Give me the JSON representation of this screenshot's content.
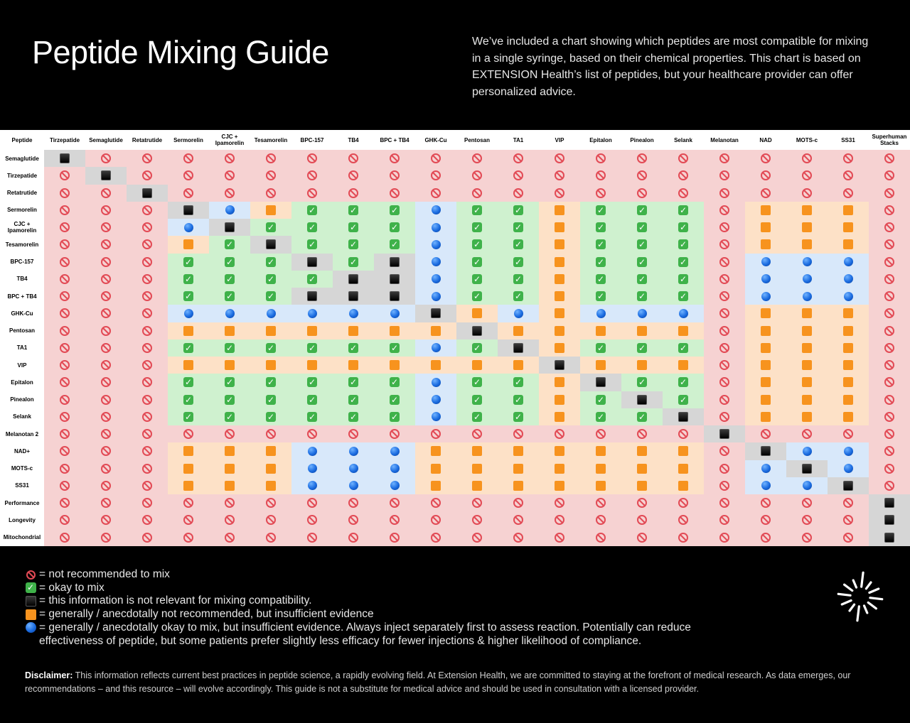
{
  "title": "Peptide Mixing Guide",
  "intro": "We’ve included a chart showing which peptides are most compatible for mixing in a single syringe, based on their chemical properties. This chart is based on EXTENSION Health’s list of peptides, but your healthcare provider can offer personalized advice.",
  "colors": {
    "not_recommended": "#e24a55",
    "okay": "#3fb24a",
    "insufficient_not_recommended": "#f7931e",
    "insufficient_okay": "#1a6be0",
    "not_relevant": "#000000"
  },
  "chart_data": {
    "type": "table",
    "corner_label": "Peptide",
    "columns": [
      "Tirzepatide",
      "Semaglutide",
      "Retatrutide",
      "Sermorelin",
      "CJC + Ipamorelin",
      "Tesamorelin",
      "BPC-157",
      "TB4",
      "BPC + TB4",
      "GHK-Cu",
      "Pentosan",
      "TA1",
      "VIP",
      "Epitalon",
      "Pinealon",
      "Selank",
      "Melanotan",
      "NAD",
      "MOTS-c",
      "SS31",
      "Superhuman Stacks"
    ],
    "rows": [
      {
        "label": "Semaglutide",
        "values": "xnnnnnnnnnnnnnnnnnnnn"
      },
      {
        "label": "Tirzepatide",
        "values": "nxnnnnnnnnnnnnnnnnnnn"
      },
      {
        "label": "Retatrutide",
        "values": "nnxnnnnnnnnnnnnnnnnnn"
      },
      {
        "label": "Sermorelin",
        "values": "nnnxboyyybyyoyyynooon"
      },
      {
        "label": "CJC + Ipamorelin",
        "values": "nnnbxyyyybyyoyyynooon"
      },
      {
        "label": "Tesamorelin",
        "values": "nnnoyxyyybyyoyyynooon"
      },
      {
        "label": "BPC-157",
        "values": "nnnyyyxyxbyyoyyynbbbn"
      },
      {
        "label": "TB4",
        "values": "nnnyyyyxxbyyoyyynbbbn"
      },
      {
        "label": "BPC + TB4",
        "values": "nnnyyyxxxbyyoyyynbbbn"
      },
      {
        "label": "GHK-Cu",
        "values": "nnnbbbbbbxobobbbnooon"
      },
      {
        "label": "Pentosan",
        "values": "nnnooooooo xooooonooon"
      },
      {
        "label": "TA1",
        "values": "nnnyyyyyybyxoyyynooon"
      },
      {
        "label": "VIP",
        "values": "nnnoooooooooxooonooon"
      },
      {
        "label": "Epitalon",
        "values": "nnnyyyyyybyyoxyynooon"
      },
      {
        "label": "Pinealon",
        "values": "nnnyyyyyybyyoyxynooon"
      },
      {
        "label": "Selank",
        "values": "nnnyyyyyybyyoyyxnooon"
      },
      {
        "label": "Melanotan 2",
        "values": "nnnnnnnnnnnnnnnnxnnnn"
      },
      {
        "label": "NAD+",
        "values": "nnnooobbbooooooonxbbn"
      },
      {
        "label": "MOTS-c",
        "values": "nnnooobbbooooooonbxbn"
      },
      {
        "label": "SS31",
        "values": "nnnooobbbooooooonbbxn"
      },
      {
        "label": "Performance",
        "values": "nnnnnnnnnnnnnnnnnnnnx"
      },
      {
        "label": "Longevity",
        "values": "nnnnnnnnnnnnnnnnnnnnx"
      },
      {
        "label": "Mitochondrial",
        "values": "nnnnnnnnnnnnnnnnnnnnx"
      }
    ],
    "value_key": {
      "n": "not recommended",
      "y": "okay",
      "b": "insufficient evidence, okay",
      "o": "insufficient evidence, not recommended",
      "x": "not relevant"
    }
  },
  "legend": [
    {
      "icon": "n",
      "text": "= not recommended to mix"
    },
    {
      "icon": "y",
      "text": "= okay to mix"
    },
    {
      "icon": "x",
      "text": "= this information is not relevant for mixing compatibility."
    },
    {
      "icon": "o",
      "text": "= generally / anecdotally not recommended, but insufficient evidence"
    },
    {
      "icon": "b",
      "text": "= generally / anecdotally okay to mix, but insufficient evidence. Always inject separately first to assess reaction. Potentially can reduce effectiveness of peptide, but some patients prefer slightly less efficacy for fewer injections & higher likelihood of compliance."
    }
  ],
  "disclaimer": {
    "label": "Disclaimer:",
    "text": "This information reflects current best practices in peptide science, a rapidly evolving field. At Extension Health, we are committed to staying at the forefront of medical research. As data emerges, our recommendations – and this resource – will evolve accordingly. This guide is not a substitute for medical advice and should be used in consultation with a licensed provider."
  }
}
